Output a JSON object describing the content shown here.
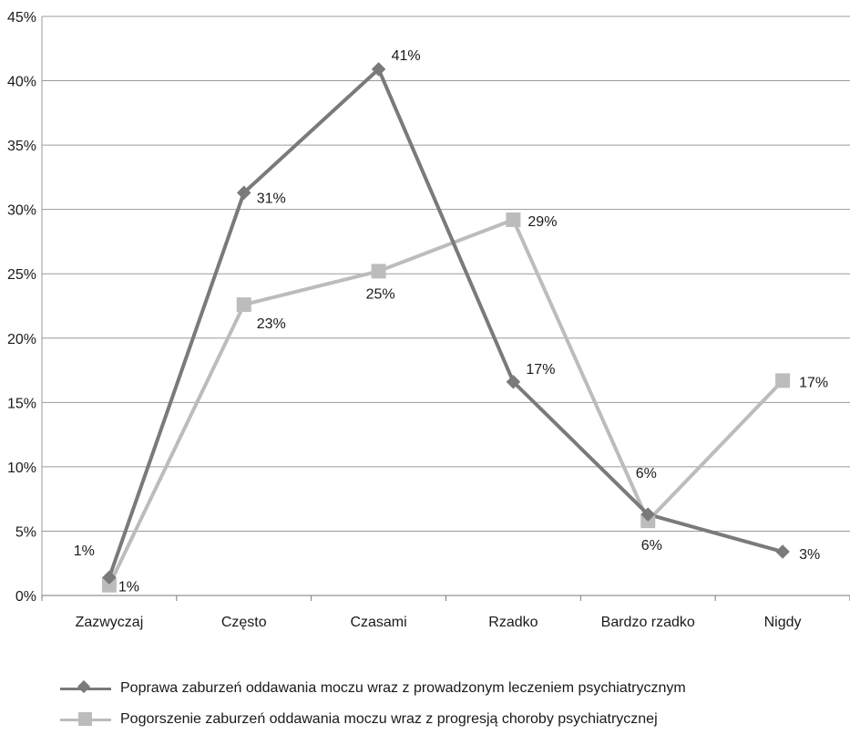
{
  "chart_data": {
    "type": "line",
    "categories": [
      "Zazwyczaj",
      "Często",
      "Czasami",
      "Rzadko",
      "Bardzo rzadko",
      "Nigdy"
    ],
    "ylim": [
      0,
      45
    ],
    "yticks": [
      "0%",
      "5%",
      "10%",
      "15%",
      "20%",
      "25%",
      "30%",
      "35%",
      "40%",
      "45%"
    ],
    "grid": true,
    "legend_position": "bottom",
    "series": [
      {
        "name": "Poprawa zaburzeń oddawania moczu wraz z prowadzonym leczeniem psychiatrycznym",
        "marker": "diamond",
        "color": "#7a7a7a",
        "values": [
          1.4,
          31.3,
          40.9,
          16.6,
          6.3,
          3.4
        ],
        "labels": [
          "1%",
          "31%",
          "41%",
          "17%",
          "6%",
          "3%"
        ]
      },
      {
        "name": "Pogorszenie zaburzeń oddawania moczu wraz z progresją choroby psychiatrycznej",
        "marker": "square",
        "color": "#bcbcbc",
        "values": [
          0.8,
          22.6,
          25.2,
          29.2,
          5.8,
          16.7
        ],
        "labels": [
          "1%",
          "23%",
          "25%",
          "29%",
          "6%",
          "17%"
        ]
      }
    ]
  }
}
